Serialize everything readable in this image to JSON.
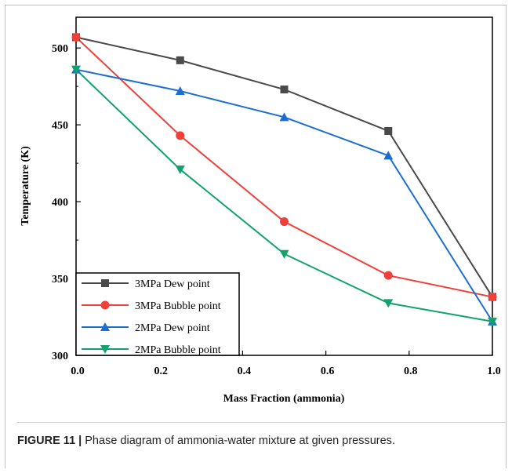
{
  "caption": {
    "label": "FIGURE 11 |",
    "text": "Phase diagram of ammonia-water mixture at given pressures."
  },
  "chart_data": {
    "type": "line",
    "title": "",
    "xlabel": "Mass Fraction (ammonia)",
    "ylabel": "Temperature (K)",
    "xlim": [
      0.0,
      1.0
    ],
    "ylim": [
      300,
      520
    ],
    "x_ticks": [
      "0.0",
      "0.2",
      "0.4",
      "0.6",
      "0.8",
      "1.0"
    ],
    "y_ticks": [
      "300",
      "350",
      "400",
      "450",
      "500"
    ],
    "x": [
      0.0,
      0.25,
      0.5,
      0.75,
      1.0
    ],
    "legend_position": "bottom-left",
    "grid": false,
    "series": [
      {
        "name": "3MPa Dew point",
        "color": "#4a4a4a",
        "marker": "square",
        "values": [
          507,
          492,
          473,
          446,
          338
        ]
      },
      {
        "name": "3MPa Bubble point",
        "color": "#f0403a",
        "marker": "circle",
        "values": [
          507,
          443,
          387,
          352,
          338
        ]
      },
      {
        "name": "2MPa Dew point",
        "color": "#1c6fd0",
        "marker": "triangle-up",
        "values": [
          486,
          472,
          455,
          430,
          322
        ]
      },
      {
        "name": "2MPa Bubble point",
        "color": "#11a36b",
        "marker": "triangle-down",
        "values": [
          486,
          421,
          366,
          334,
          322
        ]
      }
    ]
  }
}
